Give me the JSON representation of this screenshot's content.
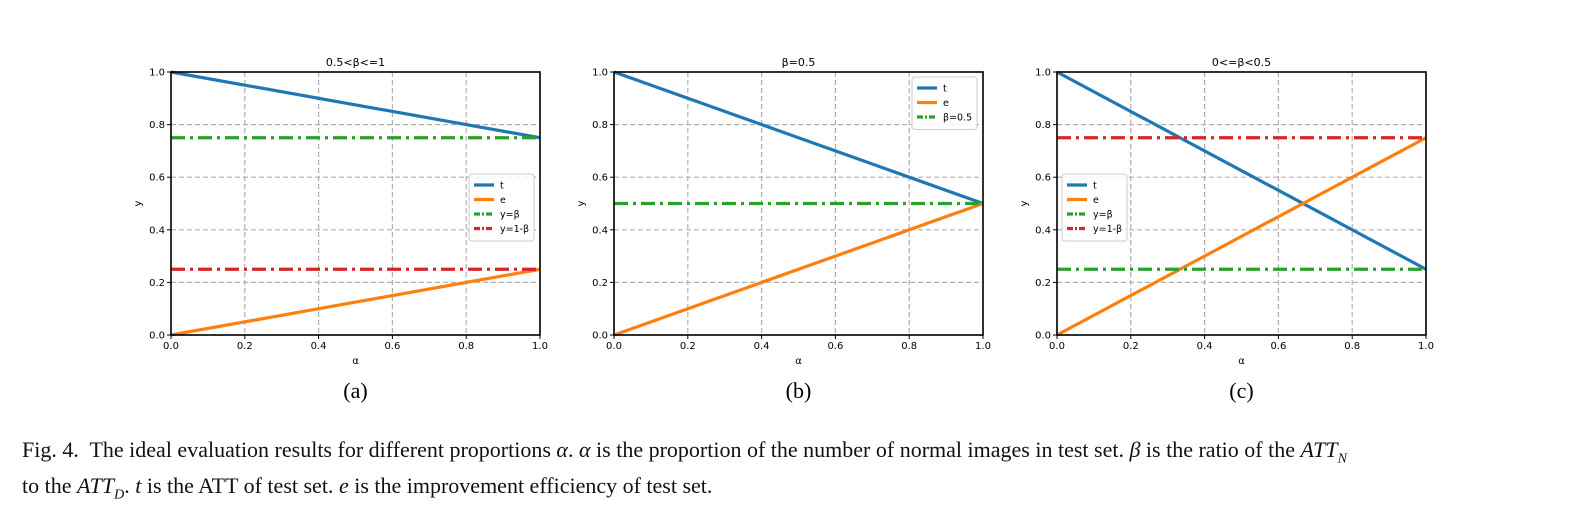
{
  "chart_data": [
    {
      "type": "line",
      "title": "0.5<β<=1",
      "sublabel": "(a)",
      "xlabel": "α",
      "ylabel": "y",
      "xlim": [
        0,
        1
      ],
      "ylim": [
        0,
        1
      ],
      "xticks": [
        "0.0",
        "0.2",
        "0.4",
        "0.6",
        "0.8",
        "1.0"
      ],
      "yticks": [
        "0.0",
        "0.2",
        "0.4",
        "0.6",
        "0.8",
        "1.0"
      ],
      "grid": true,
      "legend_position": "center-right",
      "series": [
        {
          "name": "t",
          "style": "solid",
          "color": "#1f77b4",
          "x": [
            0,
            1
          ],
          "y": [
            1.0,
            0.75
          ]
        },
        {
          "name": "e",
          "style": "solid",
          "color": "#ff7f0e",
          "x": [
            0,
            1
          ],
          "y": [
            0.0,
            0.25
          ]
        },
        {
          "name": "y=β",
          "style": "dashdot",
          "color": "#2ca02c",
          "x": [
            0,
            1
          ],
          "y": [
            0.75,
            0.75
          ]
        },
        {
          "name": "y=1-β",
          "style": "dashdot",
          "color": "#d62728",
          "x": [
            0,
            1
          ],
          "y": [
            0.25,
            0.25
          ]
        }
      ]
    },
    {
      "type": "line",
      "title": "β=0.5",
      "sublabel": "(b)",
      "xlabel": "α",
      "ylabel": "y",
      "xlim": [
        0,
        1
      ],
      "ylim": [
        0,
        1
      ],
      "xticks": [
        "0.0",
        "0.2",
        "0.4",
        "0.6",
        "0.8",
        "1.0"
      ],
      "yticks": [
        "0.0",
        "0.2",
        "0.4",
        "0.6",
        "0.8",
        "1.0"
      ],
      "grid": true,
      "legend_position": "top-right",
      "series": [
        {
          "name": "t",
          "style": "solid",
          "color": "#1f77b4",
          "x": [
            0,
            1
          ],
          "y": [
            1.0,
            0.5
          ]
        },
        {
          "name": "e",
          "style": "solid",
          "color": "#ff7f0e",
          "x": [
            0,
            1
          ],
          "y": [
            0.0,
            0.5
          ]
        },
        {
          "name": "β=0.5",
          "style": "dashdot",
          "color": "#2ca02c",
          "x": [
            0,
            1
          ],
          "y": [
            0.5,
            0.5
          ]
        }
      ]
    },
    {
      "type": "line",
      "title": "0<=β<0.5",
      "sublabel": "(c)",
      "xlabel": "α",
      "ylabel": "y",
      "xlim": [
        0,
        1
      ],
      "ylim": [
        0,
        1
      ],
      "xticks": [
        "0.0",
        "0.2",
        "0.4",
        "0.6",
        "0.8",
        "1.0"
      ],
      "yticks": [
        "0.0",
        "0.2",
        "0.4",
        "0.6",
        "0.8",
        "1.0"
      ],
      "grid": true,
      "legend_position": "center-left",
      "series": [
        {
          "name": "t",
          "style": "solid",
          "color": "#1f77b4",
          "x": [
            0,
            1
          ],
          "y": [
            1.0,
            0.25
          ]
        },
        {
          "name": "e",
          "style": "solid",
          "color": "#ff7f0e",
          "x": [
            0,
            1
          ],
          "y": [
            0.0,
            0.75
          ]
        },
        {
          "name": "y=β",
          "style": "dashdot",
          "color": "#2ca02c",
          "x": [
            0,
            1
          ],
          "y": [
            0.25,
            0.25
          ]
        },
        {
          "name": "y=1-β",
          "style": "dashdot",
          "color": "#d62728",
          "x": [
            0,
            1
          ],
          "y": [
            0.75,
            0.75
          ]
        }
      ]
    }
  ],
  "caption": {
    "label": "Fig. 4.",
    "t1": "The ideal evaluation results for different proportions ",
    "alpha": "α",
    "t2": ". ",
    "t3": " is the proportion of the number of normal images in test set. ",
    "beta": "β",
    "t4": " is the ratio of the ",
    "att": "ATT",
    "sub_n": "N",
    "t5": "to the ",
    "sub_d": "D",
    "t6": ". ",
    "t_var": "t",
    "t7": " is the ATT of test set. ",
    "e_var": "e",
    "t8": " is the improvement efficiency of test set."
  }
}
